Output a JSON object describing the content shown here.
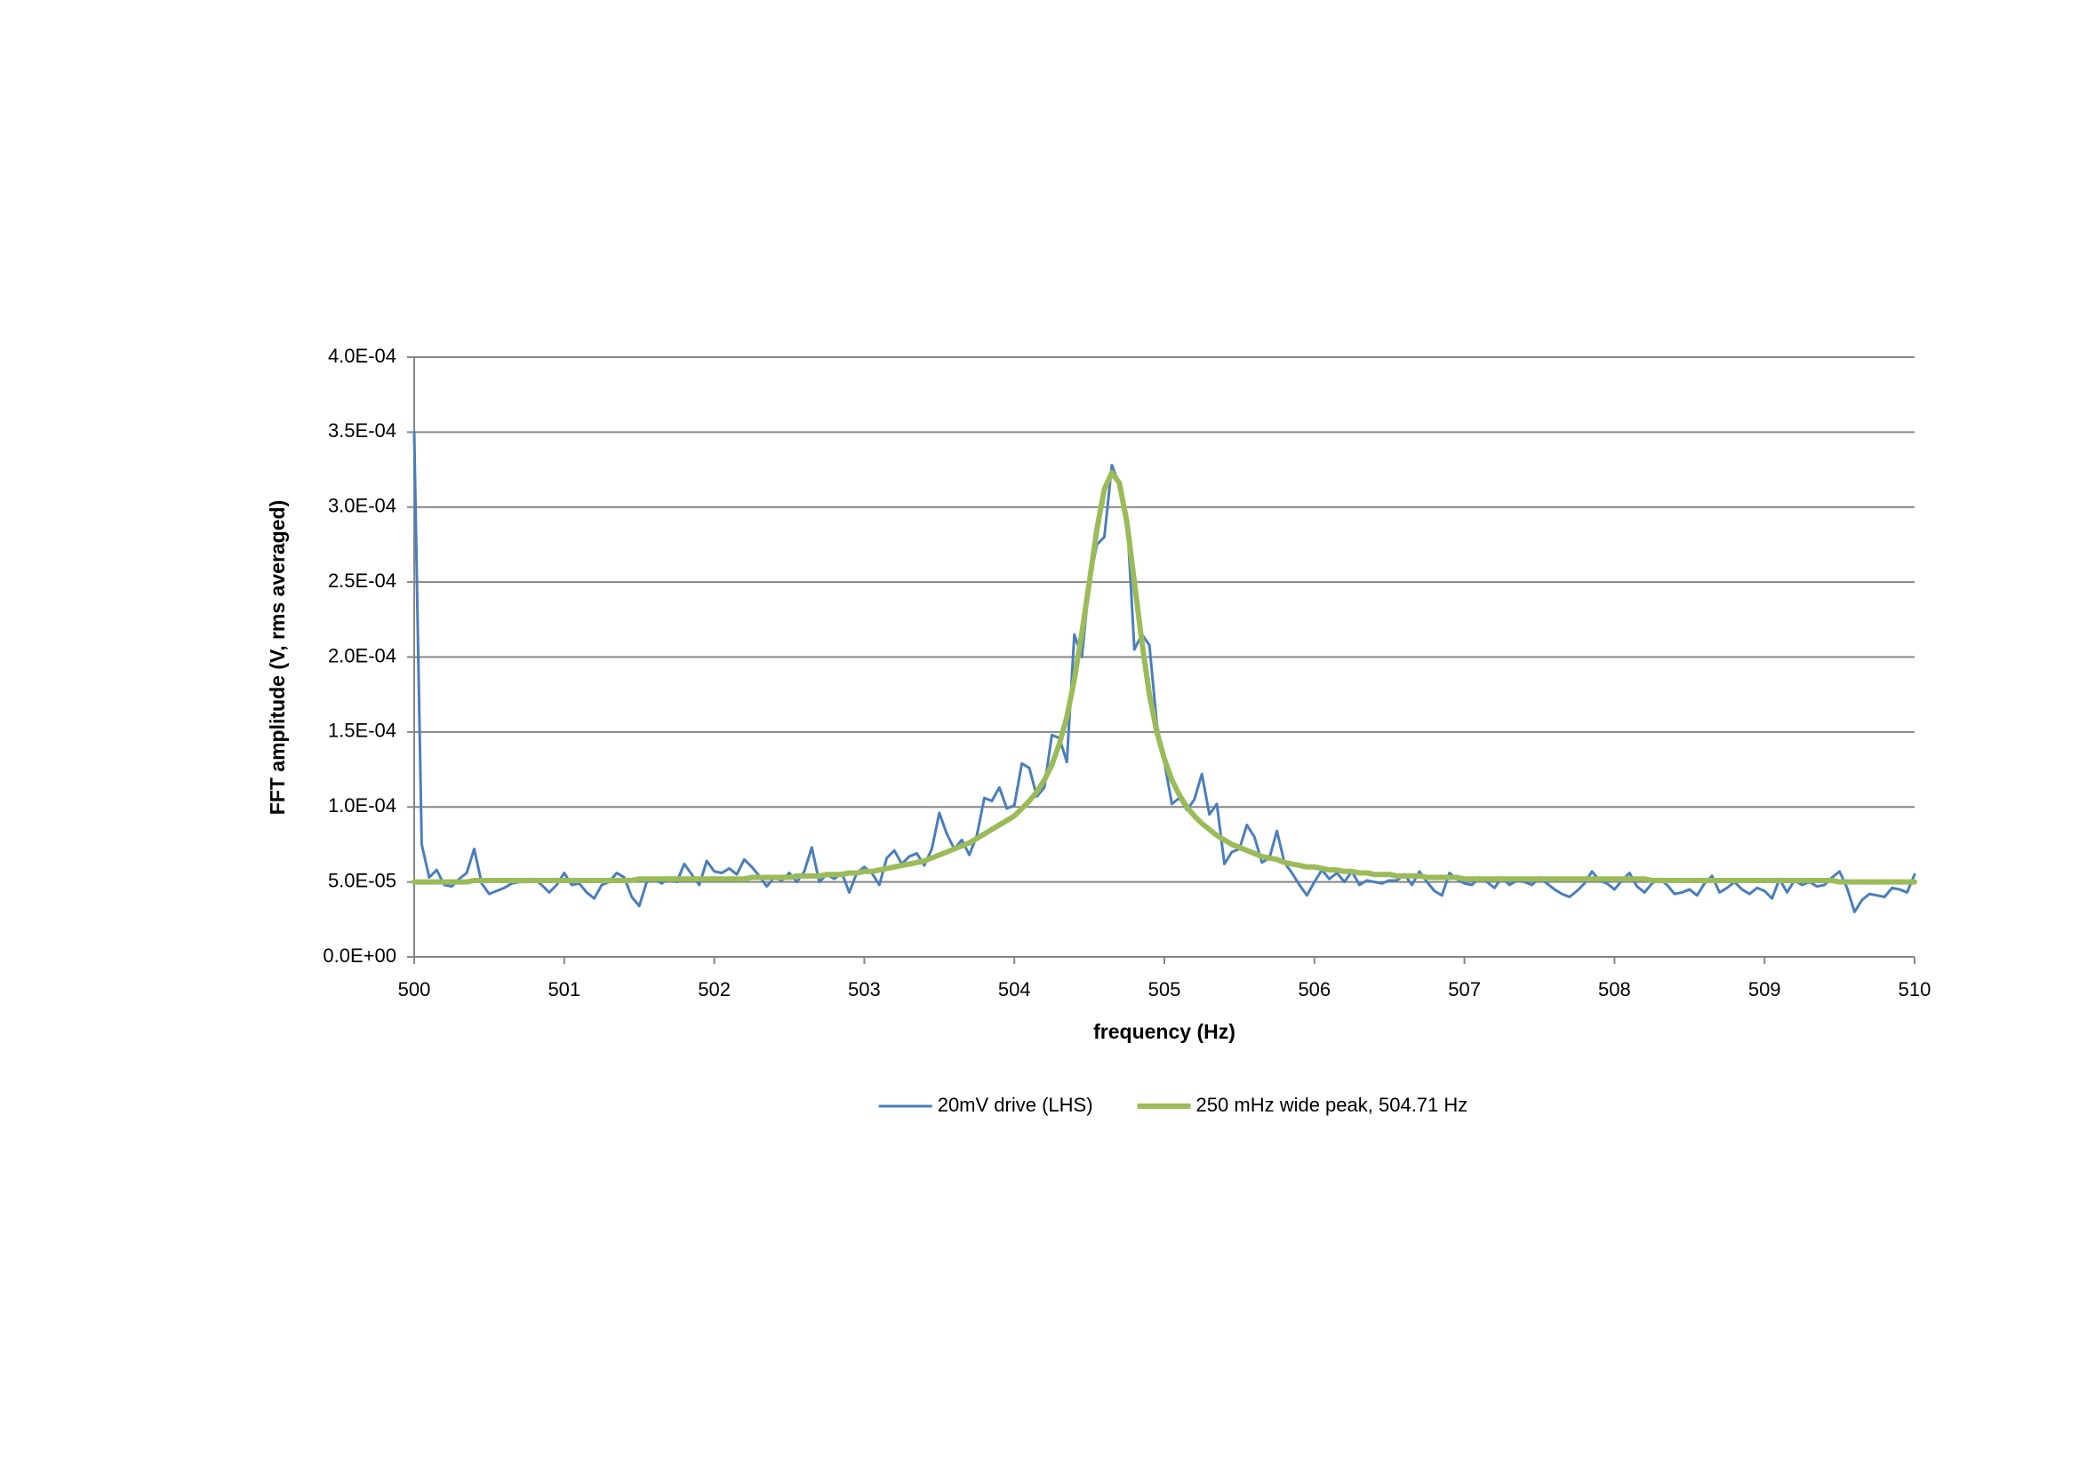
{
  "chart_data": {
    "type": "line",
    "xlabel": "frequency (Hz)",
    "ylabel": "FFT amplitude (V, rms averaged)",
    "xlim": [
      500,
      510
    ],
    "xticks": [
      500,
      501,
      502,
      503,
      504,
      505,
      506,
      507,
      508,
      509,
      510
    ],
    "ylim": [
      0,
      0.0004
    ],
    "yticks": [
      {
        "value": 0,
        "label": "0.0E+00"
      },
      {
        "value": 5e-05,
        "label": "5.0E-05"
      },
      {
        "value": 0.0001,
        "label": "1.0E-04"
      },
      {
        "value": 0.00015,
        "label": "1.5E-04"
      },
      {
        "value": 0.0002,
        "label": "2.0E-04"
      },
      {
        "value": 0.00025,
        "label": "2.5E-04"
      },
      {
        "value": 0.0003,
        "label": "3.0E-04"
      },
      {
        "value": 0.00035,
        "label": "3.5E-04"
      },
      {
        "value": 0.0004,
        "label": "4.0E-04"
      }
    ],
    "grid": true,
    "legend": "bottom",
    "x": [
      500,
      500.05,
      500.1,
      500.15,
      500.2,
      500.25,
      500.3,
      500.35,
      500.4,
      500.45,
      500.5,
      500.55,
      500.6,
      500.65,
      500.7,
      500.75,
      500.8,
      500.85,
      500.9,
      500.95,
      501,
      501.05,
      501.1,
      501.15,
      501.2,
      501.25,
      501.3,
      501.35,
      501.4,
      501.45,
      501.5,
      501.55,
      501.6,
      501.65,
      501.7,
      501.75,
      501.8,
      501.85,
      501.9,
      501.95,
      502,
      502.05,
      502.1,
      502.15,
      502.2,
      502.25,
      502.3,
      502.35,
      502.4,
      502.45,
      502.5,
      502.55,
      502.6,
      502.65,
      502.7,
      502.75,
      502.8,
      502.85,
      502.9,
      502.95,
      503,
      503.05,
      503.1,
      503.15,
      503.2,
      503.25,
      503.3,
      503.35,
      503.4,
      503.45,
      503.5,
      503.55,
      503.6,
      503.65,
      503.7,
      503.75,
      503.8,
      503.85,
      503.9,
      503.95,
      504,
      504.05,
      504.1,
      504.15,
      504.2,
      504.25,
      504.3,
      504.35,
      504.4,
      504.45,
      504.5,
      504.55,
      504.6,
      504.65,
      504.7,
      504.75,
      504.8,
      504.85,
      504.9,
      504.95,
      505,
      505.05,
      505.1,
      505.15,
      505.2,
      505.25,
      505.3,
      505.35,
      505.4,
      505.45,
      505.5,
      505.55,
      505.6,
      505.65,
      505.7,
      505.75,
      505.8,
      505.85,
      505.9,
      505.95,
      506,
      506.05,
      506.1,
      506.15,
      506.2,
      506.25,
      506.3,
      506.35,
      506.4,
      506.45,
      506.5,
      506.55,
      506.6,
      506.65,
      506.7,
      506.75,
      506.8,
      506.85,
      506.9,
      506.95,
      507,
      507.05,
      507.1,
      507.15,
      507.2,
      507.25,
      507.3,
      507.35,
      507.4,
      507.45,
      507.5,
      507.55,
      507.6,
      507.65,
      507.7,
      507.75,
      507.8,
      507.85,
      507.9,
      507.95,
      508,
      508.05,
      508.1,
      508.15,
      508.2,
      508.25,
      508.3,
      508.35,
      508.4,
      508.45,
      508.5,
      508.55,
      508.6,
      508.65,
      508.7,
      508.75,
      508.8,
      508.85,
      508.9,
      508.95,
      509,
      509.05,
      509.1,
      509.15,
      509.2,
      509.25,
      509.3,
      509.35,
      509.4,
      509.45,
      509.5,
      509.55,
      509.6,
      509.65,
      509.7,
      509.75,
      509.8,
      509.85,
      509.9,
      509.95,
      510
    ],
    "series": [
      {
        "name": "20mV drive (LHS)",
        "color": "#4a7ebb",
        "width": 3,
        "values": [
          0.00035,
          7.5e-05,
          5.3e-05,
          5.8e-05,
          4.8e-05,
          4.7e-05,
          5.2e-05,
          5.6e-05,
          7.2e-05,
          4.9e-05,
          4.2e-05,
          4.4e-05,
          4.6e-05,
          4.9e-05,
          5e-05,
          5e-05,
          5.2e-05,
          4.8e-05,
          4.3e-05,
          4.8e-05,
          5.6e-05,
          4.8e-05,
          4.9e-05,
          4.3e-05,
          3.9e-05,
          4.8e-05,
          5e-05,
          5.6e-05,
          5.3e-05,
          4e-05,
          3.4e-05,
          5e-05,
          5.2e-05,
          4.9e-05,
          5.3e-05,
          5e-05,
          6.2e-05,
          5.5e-05,
          4.8e-05,
          6.4e-05,
          5.7e-05,
          5.6e-05,
          5.9e-05,
          5.5e-05,
          6.5e-05,
          6e-05,
          5.4e-05,
          4.7e-05,
          5.3e-05,
          5.1e-05,
          5.6e-05,
          5e-05,
          5.7e-05,
          7.3e-05,
          5e-05,
          5.5e-05,
          5.2e-05,
          5.6e-05,
          4.3e-05,
          5.6e-05,
          6e-05,
          5.6e-05,
          4.8e-05,
          6.6e-05,
          7.1e-05,
          6.2e-05,
          6.7e-05,
          6.9e-05,
          6.1e-05,
          7.2e-05,
          9.6e-05,
          8.2e-05,
          7.2e-05,
          7.8e-05,
          6.8e-05,
          8.1e-05,
          0.000106,
          0.000104,
          0.000113,
          9.9e-05,
          0.000101,
          0.000129,
          0.000126,
          0.000107,
          0.000113,
          0.000148,
          0.000146,
          0.00013,
          0.000215,
          0.0002,
          0.00025,
          0.000275,
          0.00028,
          0.000328,
          0.000315,
          0.000295,
          0.000205,
          0.000215,
          0.000208,
          0.000155,
          0.00013,
          0.000102,
          0.000106,
          9.8e-05,
          0.000105,
          0.000122,
          9.5e-05,
          0.000102,
          6.2e-05,
          7e-05,
          7.2e-05,
          8.8e-05,
          8e-05,
          6.3e-05,
          6.6e-05,
          8.4e-05,
          6.3e-05,
          5.6e-05,
          4.8e-05,
          4.1e-05,
          5e-05,
          5.8e-05,
          5.2e-05,
          5.6e-05,
          5e-05,
          5.7e-05,
          4.8e-05,
          5.1e-05,
          5e-05,
          4.9e-05,
          5.1e-05,
          5.1e-05,
          5.5e-05,
          4.8e-05,
          5.7e-05,
          5e-05,
          4.4e-05,
          4.1e-05,
          5.6e-05,
          5.2e-05,
          4.9e-05,
          4.8e-05,
          5.3e-05,
          5e-05,
          4.6e-05,
          5.3e-05,
          4.8e-05,
          5.1e-05,
          5e-05,
          4.8e-05,
          5.3e-05,
          4.9e-05,
          4.5e-05,
          4.2e-05,
          4e-05,
          4.4e-05,
          4.9e-05,
          5.7e-05,
          5.1e-05,
          4.9e-05,
          4.5e-05,
          5.1e-05,
          5.6e-05,
          4.7e-05,
          4.3e-05,
          4.9e-05,
          5.2e-05,
          4.8e-05,
          4.2e-05,
          4.3e-05,
          4.5e-05,
          4.1e-05,
          4.9e-05,
          5.4e-05,
          4.3e-05,
          4.6e-05,
          5e-05,
          4.5e-05,
          4.2e-05,
          4.6e-05,
          4.4e-05,
          3.9e-05,
          5.2e-05,
          4.3e-05,
          5.1e-05,
          4.8e-05,
          5e-05,
          4.7e-05,
          4.8e-05,
          5.3e-05,
          5.7e-05,
          4.6e-05,
          3e-05,
          3.8e-05,
          4.2e-05,
          4.1e-05,
          4e-05,
          4.6e-05,
          4.5e-05,
          4.3e-05,
          5.5e-05
        ]
      },
      {
        "name": "250 mHz wide peak, 504.71 Hz",
        "color": "#9bbb59",
        "width": 6,
        "values": [
          5e-05,
          5e-05,
          5e-05,
          5e-05,
          5e-05,
          5e-05,
          5e-05,
          5e-05,
          5.1e-05,
          5.1e-05,
          5.1e-05,
          5.1e-05,
          5.1e-05,
          5.1e-05,
          5.1e-05,
          5.1e-05,
          5.1e-05,
          5.1e-05,
          5.1e-05,
          5.1e-05,
          5.1e-05,
          5.1e-05,
          5.1e-05,
          5.1e-05,
          5.1e-05,
          5.1e-05,
          5.1e-05,
          5.1e-05,
          5.1e-05,
          5.1e-05,
          5.2e-05,
          5.2e-05,
          5.2e-05,
          5.2e-05,
          5.2e-05,
          5.2e-05,
          5.2e-05,
          5.2e-05,
          5.2e-05,
          5.2e-05,
          5.2e-05,
          5.2e-05,
          5.2e-05,
          5.2e-05,
          5.2e-05,
          5.3e-05,
          5.3e-05,
          5.3e-05,
          5.3e-05,
          5.3e-05,
          5.3e-05,
          5.4e-05,
          5.4e-05,
          5.4e-05,
          5.4e-05,
          5.5e-05,
          5.5e-05,
          5.5e-05,
          5.6e-05,
          5.6e-05,
          5.7e-05,
          5.7e-05,
          5.8e-05,
          5.9e-05,
          6e-05,
          6.1e-05,
          6.2e-05,
          6.3e-05,
          6.4e-05,
          6.6e-05,
          6.8e-05,
          7e-05,
          7.2e-05,
          7.4e-05,
          7.6e-05,
          7.9e-05,
          8.2e-05,
          8.5e-05,
          8.8e-05,
          9.1e-05,
          9.4e-05,
          9.9e-05,
          0.000104,
          0.00011,
          0.000118,
          0.000128,
          0.000142,
          0.00016,
          0.000185,
          0.000216,
          0.00025,
          0.000285,
          0.000312,
          0.000323,
          0.000316,
          0.00029,
          0.00025,
          0.00021,
          0.000175,
          0.00015,
          0.000132,
          0.000118,
          0.000108,
          0.0001,
          9.4e-05,
          8.9e-05,
          8.5e-05,
          8.1e-05,
          7.8e-05,
          7.5e-05,
          7.3e-05,
          7.1e-05,
          6.9e-05,
          6.7e-05,
          6.6e-05,
          6.5e-05,
          6.3e-05,
          6.2e-05,
          6.1e-05,
          6e-05,
          6e-05,
          5.9e-05,
          5.8e-05,
          5.8e-05,
          5.7e-05,
          5.7e-05,
          5.6e-05,
          5.6e-05,
          5.5e-05,
          5.5e-05,
          5.5e-05,
          5.4e-05,
          5.4e-05,
          5.4e-05,
          5.4e-05,
          5.3e-05,
          5.3e-05,
          5.3e-05,
          5.3e-05,
          5.3e-05,
          5.2e-05,
          5.2e-05,
          5.2e-05,
          5.2e-05,
          5.2e-05,
          5.2e-05,
          5.2e-05,
          5.2e-05,
          5.2e-05,
          5.2e-05,
          5.2e-05,
          5.2e-05,
          5.2e-05,
          5.2e-05,
          5.2e-05,
          5.2e-05,
          5.2e-05,
          5.2e-05,
          5.2e-05,
          5.2e-05,
          5.2e-05,
          5.2e-05,
          5.2e-05,
          5.2e-05,
          5.2e-05,
          5.1e-05,
          5.1e-05,
          5.1e-05,
          5.1e-05,
          5.1e-05,
          5.1e-05,
          5.1e-05,
          5.1e-05,
          5.1e-05,
          5.1e-05,
          5.1e-05,
          5.1e-05,
          5.1e-05,
          5.1e-05,
          5.1e-05,
          5.1e-05,
          5.1e-05,
          5.1e-05,
          5.1e-05,
          5.1e-05,
          5.1e-05,
          5.1e-05,
          5.1e-05,
          5.1e-05,
          5.1e-05,
          5e-05,
          5e-05,
          5e-05,
          5e-05,
          5e-05,
          5e-05,
          5e-05,
          5e-05,
          5e-05,
          5e-05,
          5e-05
        ]
      }
    ]
  }
}
